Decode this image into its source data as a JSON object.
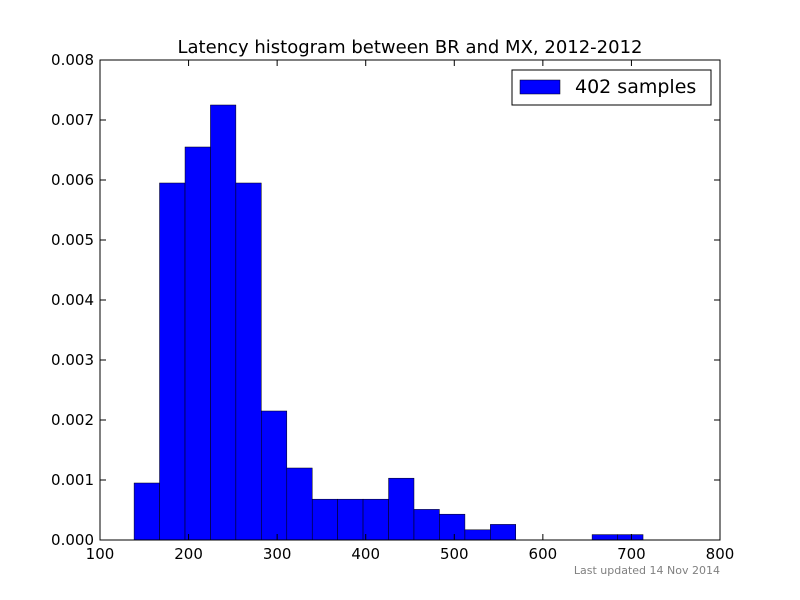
{
  "chart_data": {
    "type": "bar",
    "title": "Latency histogram between BR and MX, 2012-2012",
    "xlabel": "",
    "ylabel": "",
    "xlim": [
      100,
      800
    ],
    "ylim": [
      0,
      0.008
    ],
    "x_ticks": [
      "100",
      "200",
      "300",
      "400",
      "500",
      "600",
      "700",
      "800"
    ],
    "y_ticks": [
      "0.000",
      "0.001",
      "0.002",
      "0.003",
      "0.004",
      "0.005",
      "0.006",
      "0.007",
      "0.008"
    ],
    "grid": false,
    "legend_position": "top-right",
    "series": [
      {
        "name": "402 samples",
        "color": "#0000ff",
        "bins": [
          {
            "x0": 138.5,
            "x1": 167.2,
            "value": 0.00095
          },
          {
            "x0": 167.2,
            "x1": 196.0,
            "value": 0.00595
          },
          {
            "x0": 196.0,
            "x1": 224.7,
            "value": 0.00655
          },
          {
            "x0": 224.7,
            "x1": 253.4,
            "value": 0.00725
          },
          {
            "x0": 253.4,
            "x1": 282.1,
            "value": 0.00595
          },
          {
            "x0": 282.1,
            "x1": 310.9,
            "value": 0.00215
          },
          {
            "x0": 310.9,
            "x1": 339.6,
            "value": 0.0012
          },
          {
            "x0": 339.6,
            "x1": 368.3,
            "value": 0.00068
          },
          {
            "x0": 368.3,
            "x1": 397.0,
            "value": 0.00068
          },
          {
            "x0": 397.0,
            "x1": 425.8,
            "value": 0.00068
          },
          {
            "x0": 425.8,
            "x1": 454.5,
            "value": 0.00103
          },
          {
            "x0": 454.5,
            "x1": 483.2,
            "value": 0.00051
          },
          {
            "x0": 483.2,
            "x1": 512.0,
            "value": 0.00043
          },
          {
            "x0": 512.0,
            "x1": 540.7,
            "value": 0.00017
          },
          {
            "x0": 540.7,
            "x1": 569.4,
            "value": 0.00026
          },
          {
            "x0": 655.6,
            "x1": 684.3,
            "value": 9e-05
          },
          {
            "x0": 684.3,
            "x1": 713.1,
            "value": 9e-05
          }
        ]
      }
    ]
  },
  "footnote": "Last updated 14 Nov 2014"
}
